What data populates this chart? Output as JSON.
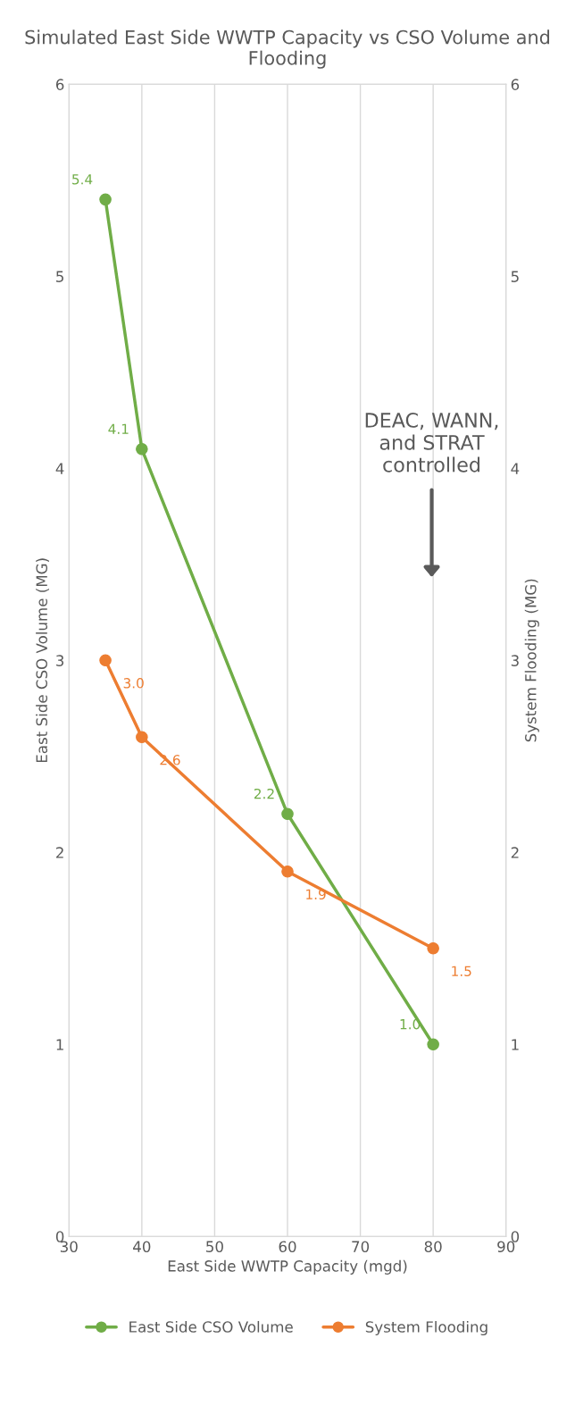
{
  "chart_data": {
    "type": "line",
    "title": "Simulated East Side WWTP Capacity vs CSO Volume and Flooding",
    "xlabel": "East Side WWTP Capacity (mgd)",
    "ylabel": "East Side CSO Volume (MG)",
    "y2label": "System Flooding (MG)",
    "x": [
      35,
      40,
      60,
      80
    ],
    "series": [
      {
        "name": "East Side CSO Volume",
        "color": "#70ad47",
        "values": [
          5.4,
          4.1,
          2.2,
          1.0
        ],
        "value_labels": [
          "5.4",
          "4.1",
          "2.2",
          "1.0"
        ]
      },
      {
        "name": "System Flooding",
        "color": "#ed7d31",
        "values": [
          3.0,
          2.6,
          1.9,
          1.5
        ],
        "value_labels": [
          "3.0",
          "2.6",
          "1.9",
          "1.5"
        ],
        "axis": "y2"
      }
    ],
    "xlim": [
      30,
      90
    ],
    "xticks": [
      30,
      40,
      50,
      60,
      70,
      80,
      90
    ],
    "ylim": [
      0,
      6
    ],
    "yticks": [
      0,
      1,
      2,
      3,
      4,
      5,
      6
    ],
    "y2lim": [
      0,
      6
    ],
    "y2ticks": [
      0,
      1,
      2,
      3,
      4,
      5,
      6
    ],
    "annotations": [
      "DEAC, WANN,\nand STRAT\ncontrolled"
    ],
    "grid": "x",
    "legend": "bottom",
    "marker": "circle",
    "line_style": "solid"
  }
}
